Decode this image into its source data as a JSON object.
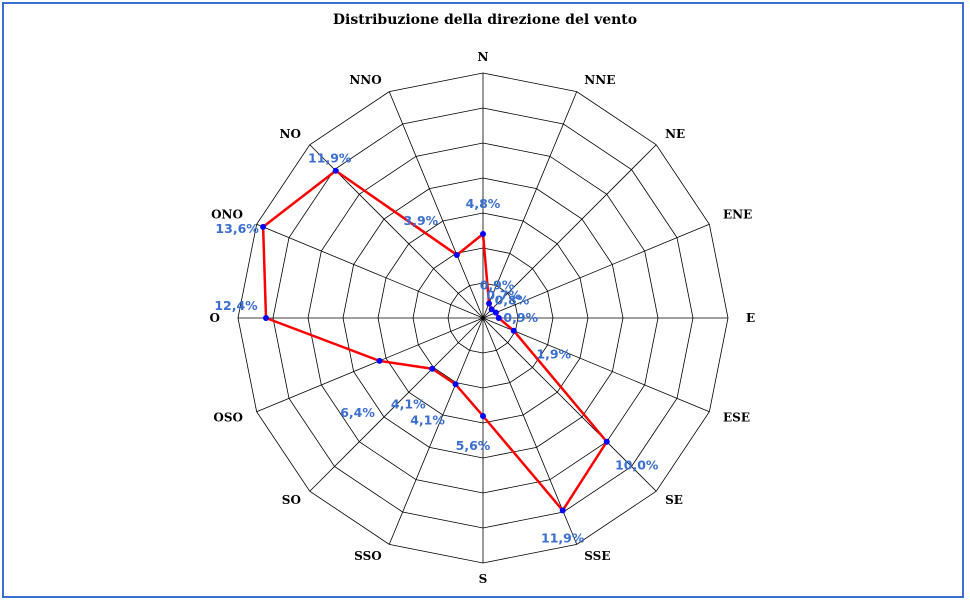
{
  "chart_data": {
    "type": "radar",
    "title": "Distribuzione della direzione del vento",
    "categories": [
      "N",
      "NNE",
      "NE",
      "ENE",
      "E",
      "ESE",
      "SE",
      "SSE",
      "S",
      "SSO",
      "SO",
      "OSO",
      "O",
      "ONO",
      "NO",
      "NNO"
    ],
    "series": [
      {
        "values": [
          4.8,
          0.9,
          0.7,
          0.8,
          0.9,
          1.9,
          10.0,
          11.9,
          5.6,
          4.1,
          4.1,
          6.4,
          12.4,
          13.6,
          11.9,
          3.9
        ],
        "labels": [
          "4,8%",
          "0,9%",
          "0,7%",
          "0,8%",
          "0,9%",
          "1,9%",
          "10,0%",
          "11,9%",
          "5,6%",
          "4,1%",
          "4,1%",
          "6,4%",
          "12,4%",
          "13,6%",
          "11,9%",
          "3,9%"
        ],
        "color": "#ff0000",
        "marker_color": "#0000ff"
      }
    ],
    "rmax": 14,
    "rings": 7,
    "grid": true,
    "label_color": "#3a6fd0"
  }
}
